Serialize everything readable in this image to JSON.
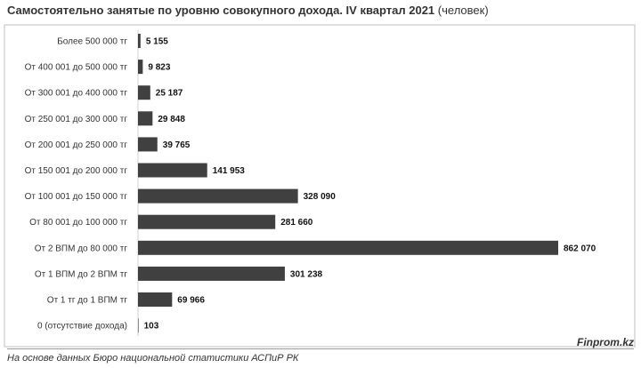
{
  "title": {
    "main": "Самостоятельно занятые по уровню совокупного дохода. IV квартал 2021",
    "unit": "(человек)"
  },
  "source": "На основе данных Бюро национальной статистики АСПиР РК",
  "brand": "Finprom.kz",
  "colors": {
    "bar": "#404040",
    "frame": "#bfbfbf"
  },
  "chart_data": {
    "type": "bar",
    "orientation": "horizontal",
    "title": "Самостоятельно занятые по уровню совокупного дохода. IV квартал 2021 (человек)",
    "categories": [
      "Более 500 000 тг",
      "От 400 001 до 500 000 тг",
      "От 300 001 до 400 000 тг",
      "От 250 001 до 300 000 тг",
      "От 200 001 до 250 000 тг",
      "От 150 001 до 200 000 тг",
      "От 100 001 до 150 000 тг",
      "От 80 001 до 100 000 тг",
      "От 2 ВПМ до 80 000 тг",
      "От 1 ВПМ до 2 ВПМ тг",
      "От 1 тг до 1 ВПМ тг",
      "0 (отсутствие дохода)"
    ],
    "values": [
      5155,
      9823,
      25187,
      29848,
      39765,
      141953,
      328090,
      281660,
      862070,
      301238,
      69966,
      103
    ],
    "value_labels": [
      "5 155",
      "9 823",
      "25 187",
      "29 848",
      "39 765",
      "141 953",
      "328 090",
      "281 660",
      "862 070",
      "301 238",
      "69 966",
      "103"
    ],
    "xlim": [
      0,
      862070
    ],
    "grid": false,
    "legend": "none"
  }
}
